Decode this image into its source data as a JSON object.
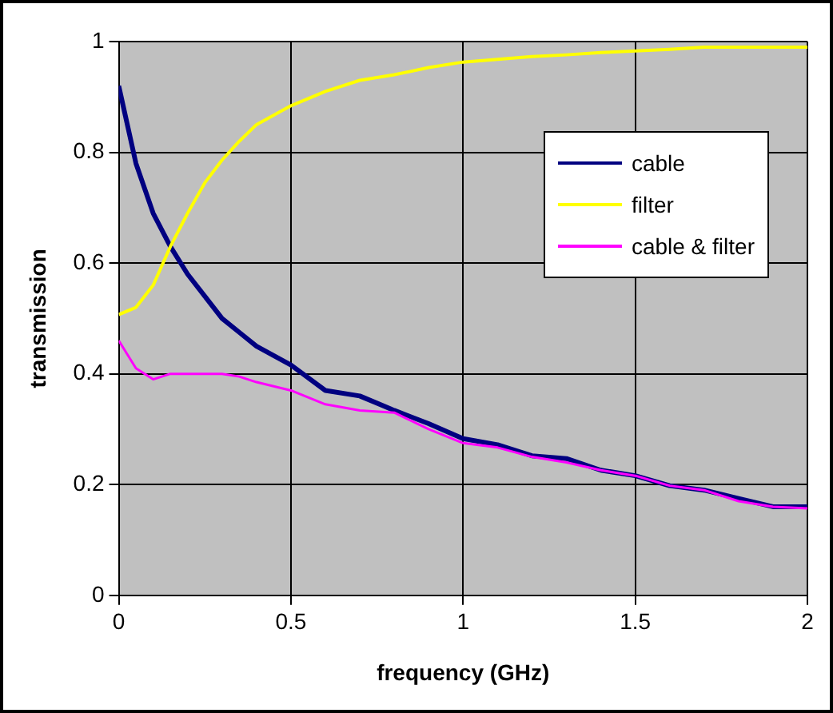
{
  "chart_data": {
    "type": "line",
    "xlabel": "frequency (GHz)",
    "ylabel": "transmission",
    "x": [
      0,
      0.05,
      0.1,
      0.15,
      0.2,
      0.25,
      0.3,
      0.35,
      0.4,
      0.5,
      0.6,
      0.7,
      0.8,
      0.9,
      1,
      1.1,
      1.2,
      1.3,
      1.4,
      1.5,
      1.6,
      1.7,
      1.8,
      1.9,
      2
    ],
    "series": [
      {
        "name": "cable",
        "color": "#000080",
        "values": [
          0.92,
          0.78,
          0.69,
          0.63,
          0.58,
          0.54,
          0.5,
          0.475,
          0.45,
          0.416,
          0.37,
          0.36,
          0.334,
          0.31,
          0.283,
          0.272,
          0.252,
          0.247,
          0.226,
          0.216,
          0.198,
          0.19,
          0.175,
          0.16,
          0.16
        ]
      },
      {
        "name": "filter",
        "color": "#ffff00",
        "values": [
          0.507,
          0.52,
          0.56,
          0.63,
          0.69,
          0.745,
          0.786,
          0.82,
          0.85,
          0.884,
          0.91,
          0.93,
          0.94,
          0.953,
          0.963,
          0.968,
          0.973,
          0.976,
          0.98,
          0.983,
          0.986,
          0.99,
          0.99,
          0.99,
          0.99
        ]
      },
      {
        "name": "cable & filter",
        "color": "#ff00ff",
        "values": [
          0.46,
          0.41,
          0.39,
          0.4,
          0.4,
          0.4,
          0.4,
          0.395,
          0.385,
          0.37,
          0.345,
          0.334,
          0.33,
          0.3,
          0.275,
          0.267,
          0.25,
          0.24,
          0.226,
          0.216,
          0.198,
          0.19,
          0.17,
          0.16,
          0.157
        ]
      }
    ],
    "xlim": [
      0,
      2
    ],
    "xticks": [
      0,
      0.5,
      1,
      1.5,
      2
    ],
    "ylim": [
      0,
      1
    ],
    "yticks": [
      0,
      0.2,
      0.4,
      0.6,
      0.8,
      1
    ],
    "grid": true,
    "legend": "top right",
    "marker": "none",
    "line_style": "solid"
  }
}
